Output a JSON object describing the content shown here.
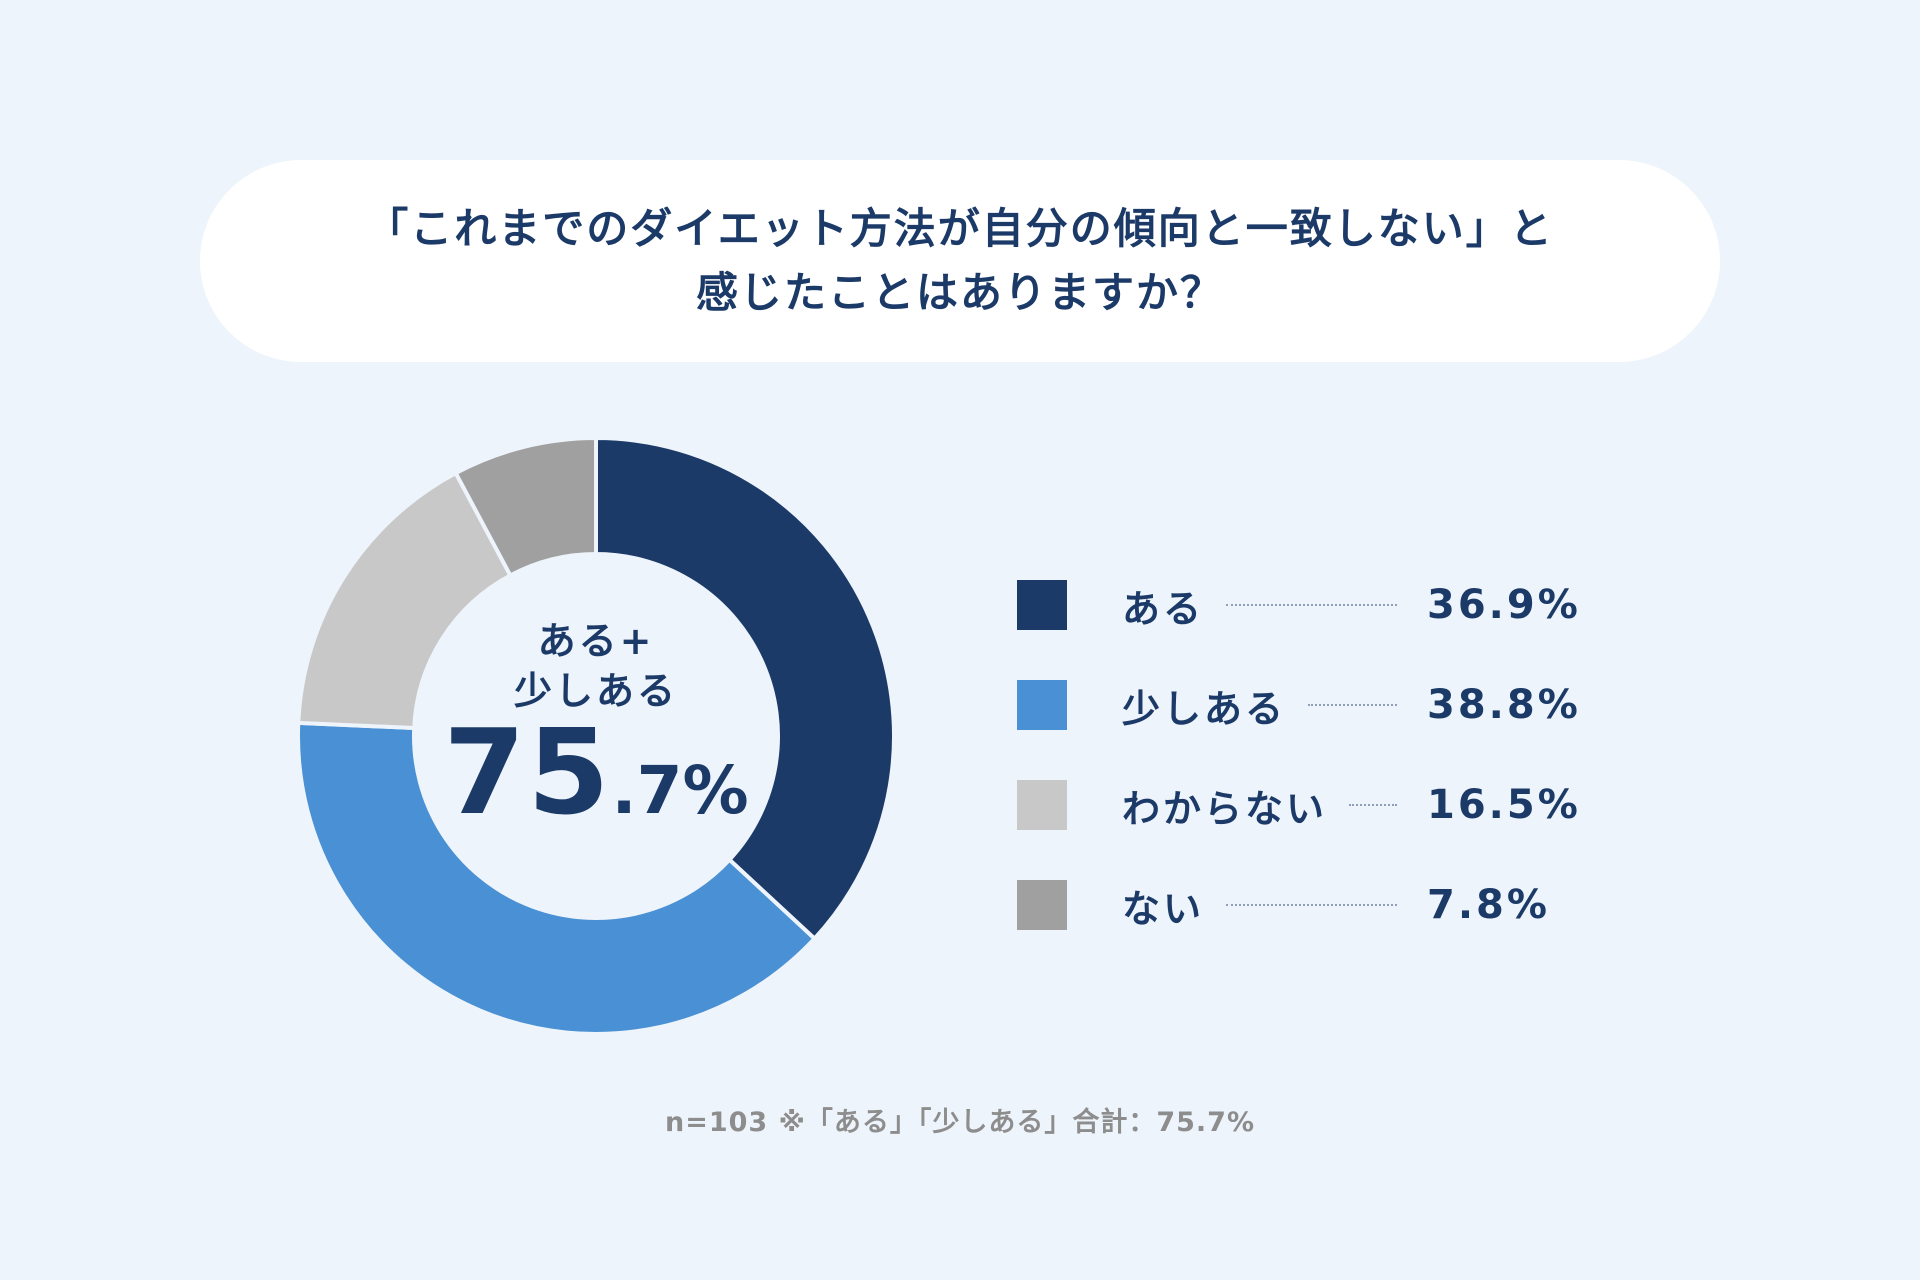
{
  "title": {
    "line1": "「これまでのダイエット方法が自分の傾向と一致しない」と",
    "line2": "感じたことはありますか？"
  },
  "center": {
    "line1": "ある+",
    "line2": "少しある",
    "value_int": "75",
    "value_dec": ".7%"
  },
  "footnote": "n=103 ※「ある」「少しある」合計：75.7%",
  "chart_data": {
    "type": "pie",
    "donut": true,
    "categories": [
      "ある",
      "少しある",
      "わからない",
      "ない"
    ],
    "values": [
      36.9,
      38.8,
      16.5,
      7.8
    ],
    "value_labels": [
      "36.9%",
      "38.8%",
      "16.5%",
      "7.8%"
    ],
    "colors": [
      "#1c3a68",
      "#4a90d4",
      "#c8c8c8",
      "#a0a0a0"
    ],
    "legend_position": "right",
    "n": 103
  }
}
